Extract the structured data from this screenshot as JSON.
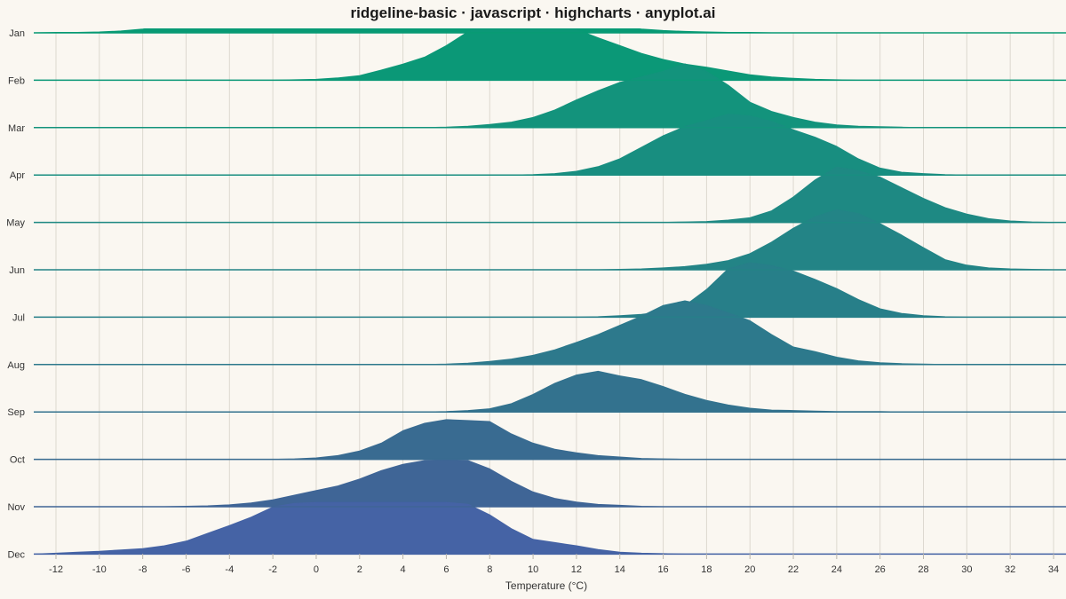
{
  "chart_data": {
    "type": "ridgeline",
    "title": "ridgeline-basic · javascript · highcharts · anyplot.ai",
    "xlabel": "Temperature (°C)",
    "ylabel": "",
    "xlim": [
      -13,
      34
    ],
    "x_ticks": [
      -12,
      -10,
      -8,
      -6,
      -4,
      -2,
      0,
      2,
      4,
      6,
      8,
      10,
      12,
      14,
      16,
      18,
      20,
      22,
      24,
      26,
      28,
      30,
      32,
      34
    ],
    "x_tick_labels": [
      "-12",
      "-10",
      "-8",
      "-6",
      "-4",
      "-2",
      "0",
      "2",
      "4",
      "6",
      "8",
      "10",
      "12",
      "14",
      "16",
      "18",
      "20",
      "22",
      "24",
      "26",
      "28",
      "30",
      "32",
      "34"
    ],
    "grid": true,
    "x": [
      -13,
      -12,
      -11,
      -10,
      -9,
      -8,
      -7,
      -6,
      -5,
      -4,
      -3,
      -2,
      -1,
      0,
      1,
      2,
      3,
      4,
      5,
      6,
      7,
      8,
      9,
      10,
      11,
      12,
      13,
      14,
      15,
      16,
      17,
      18,
      19,
      20,
      21,
      22,
      23,
      24,
      25,
      26,
      27,
      28,
      29,
      30,
      31,
      32,
      33,
      34
    ],
    "series": [
      {
        "name": "Jan",
        "color": "#079a74",
        "values": [
          0,
          0.01,
          0.01,
          0.02,
          0.04,
          0.08,
          0.15,
          0.28,
          0.45,
          0.62,
          0.82,
          1.02,
          1.18,
          1.28,
          1.32,
          1.33,
          1.33,
          1.32,
          1.31,
          1.29,
          1.26,
          1.15,
          0.95,
          0.8,
          0.55,
          0.35,
          0.22,
          0.14,
          0.08,
          0.05,
          0.03,
          0.02,
          0.01,
          0.01,
          0,
          0,
          0,
          0,
          0,
          0,
          0,
          0,
          0,
          0,
          0,
          0,
          0,
          0
        ]
      },
      {
        "name": "Feb",
        "color": "#0b9877",
        "values": [
          0,
          0,
          0,
          0,
          0,
          0,
          0,
          0,
          0,
          0,
          0,
          0,
          0.01,
          0.02,
          0.05,
          0.1,
          0.22,
          0.35,
          0.5,
          0.75,
          1.05,
          1.25,
          1.35,
          1.38,
          1.3,
          1.1,
          0.92,
          0.75,
          0.58,
          0.45,
          0.35,
          0.28,
          0.2,
          0.12,
          0.07,
          0.04,
          0.02,
          0.01,
          0,
          0,
          0,
          0,
          0,
          0,
          0,
          0,
          0,
          0
        ]
      },
      {
        "name": "Mar",
        "color": "#13937c",
        "values": [
          0,
          0,
          0,
          0,
          0,
          0,
          0,
          0,
          0,
          0,
          0,
          0,
          0,
          0,
          0,
          0,
          0,
          0,
          0,
          0.01,
          0.03,
          0.07,
          0.12,
          0.22,
          0.38,
          0.6,
          0.8,
          0.98,
          1.1,
          1.22,
          1.38,
          1.22,
          0.92,
          0.55,
          0.35,
          0.22,
          0.12,
          0.06,
          0.03,
          0.02,
          0.01,
          0,
          0,
          0,
          0,
          0,
          0,
          0
        ]
      },
      {
        "name": "Apr",
        "color": "#188e80",
        "values": [
          0,
          0,
          0,
          0,
          0,
          0,
          0,
          0,
          0,
          0,
          0,
          0,
          0,
          0,
          0,
          0,
          0,
          0,
          0,
          0,
          0,
          0,
          0,
          0.01,
          0.03,
          0.08,
          0.18,
          0.35,
          0.6,
          0.85,
          1.05,
          1.18,
          1.32,
          1.28,
          1.16,
          0.98,
          0.82,
          0.62,
          0.35,
          0.15,
          0.06,
          0.03,
          0.01,
          0,
          0,
          0,
          0,
          0
        ]
      },
      {
        "name": "May",
        "color": "#1e8983",
        "values": [
          0,
          0,
          0,
          0,
          0,
          0,
          0,
          0,
          0,
          0,
          0,
          0,
          0,
          0,
          0,
          0,
          0,
          0,
          0,
          0,
          0,
          0,
          0,
          0,
          0,
          0,
          0,
          0,
          0,
          0,
          0.01,
          0.02,
          0.05,
          0.1,
          0.25,
          0.55,
          0.92,
          1.2,
          1.12,
          0.98,
          0.75,
          0.52,
          0.32,
          0.18,
          0.08,
          0.03,
          0.01,
          0
        ]
      },
      {
        "name": "Jun",
        "color": "#238486",
        "values": [
          0,
          0,
          0,
          0,
          0,
          0,
          0,
          0,
          0,
          0,
          0,
          0,
          0,
          0,
          0,
          0,
          0,
          0,
          0,
          0,
          0,
          0,
          0,
          0,
          0,
          0,
          0,
          0.01,
          0.02,
          0.04,
          0.07,
          0.12,
          0.2,
          0.35,
          0.6,
          0.9,
          1.15,
          1.3,
          1.22,
          1.0,
          0.75,
          0.48,
          0.22,
          0.1,
          0.04,
          0.02,
          0.01,
          0
        ]
      },
      {
        "name": "Jul",
        "color": "#277f89",
        "values": [
          0,
          0,
          0,
          0,
          0,
          0,
          0,
          0,
          0,
          0,
          0,
          0,
          0,
          0,
          0,
          0,
          0,
          0,
          0,
          0,
          0,
          0,
          0,
          0,
          0,
          0,
          0.01,
          0.03,
          0.06,
          0.12,
          0.25,
          0.6,
          1.05,
          1.18,
          1.12,
          1.0,
          0.82,
          0.62,
          0.38,
          0.18,
          0.08,
          0.03,
          0.01,
          0,
          0,
          0,
          0,
          0
        ]
      },
      {
        "name": "Aug",
        "color": "#2d798c",
        "values": [
          0,
          0,
          0,
          0,
          0,
          0,
          0,
          0,
          0,
          0,
          0,
          0,
          0,
          0,
          0,
          0,
          0,
          0,
          0,
          0.01,
          0.03,
          0.07,
          0.12,
          0.2,
          0.32,
          0.48,
          0.65,
          0.85,
          1.05,
          1.28,
          1.38,
          1.28,
          1.12,
          0.95,
          0.65,
          0.38,
          0.28,
          0.16,
          0.08,
          0.04,
          0.02,
          0.01,
          0,
          0,
          0,
          0,
          0,
          0
        ]
      },
      {
        "name": "Sep",
        "color": "#33728e",
        "values": [
          0,
          0,
          0,
          0,
          0,
          0,
          0,
          0,
          0,
          0,
          0,
          0,
          0,
          0,
          0,
          0,
          0,
          0,
          0,
          0.01,
          0.03,
          0.07,
          0.18,
          0.38,
          0.62,
          0.8,
          0.88,
          0.78,
          0.7,
          0.55,
          0.38,
          0.25,
          0.15,
          0.08,
          0.04,
          0.03,
          0.02,
          0.01,
          0.01,
          0.01,
          0,
          0,
          0,
          0,
          0,
          0,
          0,
          0
        ]
      },
      {
        "name": "Oct",
        "color": "#396b91",
        "values": [
          0,
          0,
          0,
          0,
          0,
          0,
          0,
          0,
          0,
          0,
          0,
          0,
          0.01,
          0.03,
          0.08,
          0.18,
          0.35,
          0.62,
          0.78,
          0.86,
          0.84,
          0.82,
          0.55,
          0.35,
          0.22,
          0.14,
          0.08,
          0.05,
          0.02,
          0.01,
          0,
          0,
          0,
          0,
          0,
          0,
          0,
          0,
          0,
          0,
          0,
          0,
          0,
          0,
          0,
          0,
          0,
          0
        ]
      },
      {
        "name": "Nov",
        "color": "#3f6596",
        "values": [
          0,
          0,
          0,
          0,
          0,
          0,
          0,
          0.01,
          0.02,
          0.04,
          0.08,
          0.15,
          0.25,
          0.35,
          0.45,
          0.6,
          0.78,
          0.92,
          1.0,
          1.02,
          1.0,
          0.82,
          0.55,
          0.32,
          0.18,
          0.1,
          0.05,
          0.03,
          0.01,
          0,
          0,
          0,
          0,
          0,
          0,
          0,
          0,
          0,
          0,
          0,
          0,
          0,
          0,
          0,
          0,
          0,
          0,
          0
        ]
      },
      {
        "name": "Dec",
        "color": "#4563a5",
        "values": [
          0,
          0.02,
          0.04,
          0.06,
          0.09,
          0.12,
          0.18,
          0.28,
          0.45,
          0.62,
          0.8,
          1.02,
          1.1,
          1.12,
          1.12,
          1.12,
          1.12,
          1.12,
          1.12,
          1.12,
          1.08,
          0.85,
          0.55,
          0.32,
          0.25,
          0.18,
          0.1,
          0.04,
          0.02,
          0.01,
          0,
          0,
          0,
          0,
          0,
          0,
          0,
          0,
          0,
          0,
          0,
          0,
          0,
          0,
          0,
          0,
          0,
          0
        ]
      }
    ],
    "line_color": "#1f6e8a",
    "grid_color": "#dcd8cf"
  }
}
